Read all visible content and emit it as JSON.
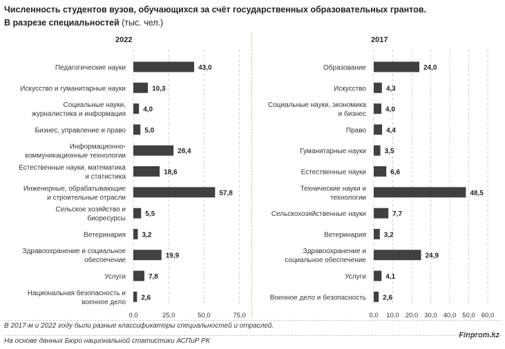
{
  "title": {
    "line1": "Численность студентов вузов, обучающихся за счёт государственных образовательных грантов.",
    "line2": "В разрезе специальностей",
    "unit": "(тыс. чел.)"
  },
  "chart_data": [
    {
      "type": "bar",
      "orientation": "horizontal",
      "title": "2022",
      "xlim": [
        0,
        75
      ],
      "xticks": [
        "0,0",
        "25,0",
        "50,0",
        "75,0"
      ],
      "grid": true,
      "categories": [
        [
          "Педагогические науки"
        ],
        [
          "Искусство и гуманитарные науки"
        ],
        [
          "Социальные науки,",
          "журналистика и информация"
        ],
        [
          "Бизнес, управление и право"
        ],
        [
          "Информационно-",
          "коммуникационные технологии"
        ],
        [
          "Естественные науки, математика",
          "и статистика"
        ],
        [
          "Инженерные, обрабатывающие",
          "и строительные отрасли"
        ],
        [
          "Сельское хозяйство и",
          "биоресурсы"
        ],
        [
          "Ветеринария"
        ],
        [
          "Здравоохранение и социальное",
          "обеспечение"
        ],
        [
          "Услуги"
        ],
        [
          "Национальная безопасность и",
          "военное дело"
        ]
      ],
      "values": [
        43.0,
        10.3,
        4.0,
        5.0,
        28.4,
        18.6,
        57.8,
        5.5,
        3.2,
        19.9,
        7.8,
        2.6
      ],
      "value_labels": [
        "43,0",
        "10,3",
        "4,0",
        "5,0",
        "28,4",
        "18,6",
        "57,8",
        "5,5",
        "3,2",
        "19,9",
        "7,8",
        "2,6"
      ],
      "bar_color": "#404040"
    },
    {
      "type": "bar",
      "orientation": "horizontal",
      "title": "2017",
      "xlim": [
        0,
        60
      ],
      "xticks": [
        "0,0",
        "10,0",
        "20,0",
        "30,0",
        "40,0",
        "50,0",
        "60,0"
      ],
      "grid": true,
      "categories": [
        [
          "Образование"
        ],
        [
          "Искусство"
        ],
        [
          "Социальные науки, экономика",
          "и бизнес"
        ],
        [
          "Право"
        ],
        [
          "Гуманитарные науки"
        ],
        [
          "Естественные науки"
        ],
        [
          "Технические науки и",
          "технологии"
        ],
        [
          "Сельскохозяйственные науки"
        ],
        [
          "Ветеринария"
        ],
        [
          "Здравоохранение и",
          "социальное обеспечение"
        ],
        [
          "Услуги"
        ],
        [
          "Военное дело и безопасность"
        ]
      ],
      "values": [
        24.0,
        4.3,
        4.0,
        4.4,
        3.5,
        6.6,
        48.5,
        7.7,
        3.2,
        24.9,
        4.1,
        2.6
      ],
      "value_labels": [
        "24,0",
        "4,3",
        "4,0",
        "4,4",
        "3,5",
        "6,6",
        "48,5",
        "7,7",
        "3,2",
        "24,9",
        "4,1",
        "2,6"
      ],
      "bar_color": "#404040"
    }
  ],
  "footer": {
    "note1": "В 2017-м и 2022 году были разные классификаторы специальностей и отраслей.",
    "note2": "На основе данных Бюро национальной статистики АСПиР РК",
    "brand": "Finprom.kz"
  }
}
